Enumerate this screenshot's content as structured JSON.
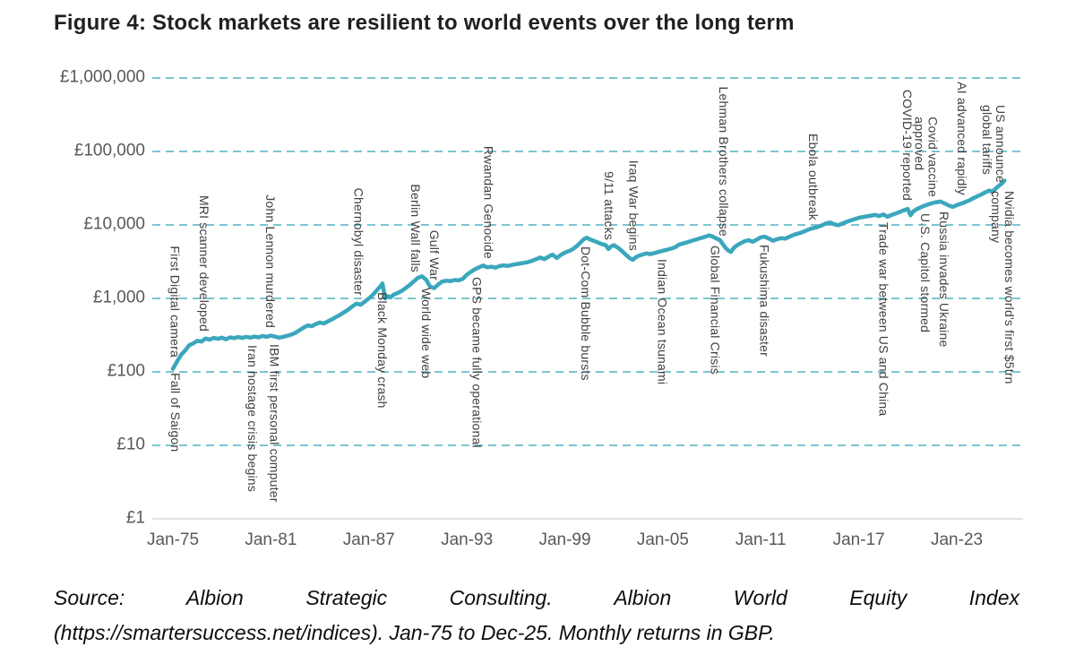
{
  "title": "Figure 4: Stock markets are resilient to world events over the long term",
  "source": {
    "line1": "Source: Albion Strategic Consulting. Albion World Equity Index",
    "line2": "(https://smartersuccess.net/indices). Jan-75 to Dec-25. Monthly returns in GBP."
  },
  "colors": {
    "line": "#3aa7bc",
    "grid": "#4fb3c4",
    "baseline": "#d9d9d9",
    "axis_text": "#595959",
    "event_text": "#3f3f3f",
    "title_text": "#231f20"
  },
  "chart_data": {
    "type": "line",
    "title": "Figure 4: Stock markets are resilient to world events over the long term",
    "y_scale": "log",
    "x_range": [
      1975,
      2027
    ],
    "y_range": [
      1,
      1000000
    ],
    "x_ticks": [
      {
        "year": 1975,
        "label": "Jan-75"
      },
      {
        "year": 1981,
        "label": "Jan-81"
      },
      {
        "year": 1987,
        "label": "Jan-87"
      },
      {
        "year": 1993,
        "label": "Jan-93"
      },
      {
        "year": 1999,
        "label": "Jan-99"
      },
      {
        "year": 2005,
        "label": "Jan-05"
      },
      {
        "year": 2011,
        "label": "Jan-11"
      },
      {
        "year": 2017,
        "label": "Jan-17"
      },
      {
        "year": 2023,
        "label": "Jan-23"
      }
    ],
    "y_ticks": [
      {
        "value": 1,
        "label": "£1"
      },
      {
        "value": 10,
        "label": "£10"
      },
      {
        "value": 100,
        "label": "£100"
      },
      {
        "value": 1000,
        "label": "£1,000"
      },
      {
        "value": 10000,
        "label": "£10,000"
      },
      {
        "value": 100000,
        "label": "£100,000"
      },
      {
        "value": 1000000,
        "label": "£1,000,000"
      }
    ],
    "series": [
      {
        "name": "Albion World Equity Index (GBP)",
        "points": [
          [
            1975.0,
            110
          ],
          [
            1975.25,
            138
          ],
          [
            1975.5,
            170
          ],
          [
            1975.75,
            195
          ],
          [
            1976.0,
            230
          ],
          [
            1976.25,
            245
          ],
          [
            1976.5,
            265
          ],
          [
            1976.75,
            258
          ],
          [
            1977.0,
            285
          ],
          [
            1977.25,
            275
          ],
          [
            1977.5,
            290
          ],
          [
            1977.75,
            282
          ],
          [
            1978.0,
            292
          ],
          [
            1978.25,
            278
          ],
          [
            1978.5,
            295
          ],
          [
            1978.75,
            288
          ],
          [
            1979.0,
            298
          ],
          [
            1979.25,
            290
          ],
          [
            1979.5,
            300
          ],
          [
            1979.75,
            292
          ],
          [
            1980.0,
            302
          ],
          [
            1980.25,
            295
          ],
          [
            1980.5,
            308
          ],
          [
            1980.75,
            300
          ],
          [
            1981.0,
            312
          ],
          [
            1981.25,
            302
          ],
          [
            1981.5,
            292
          ],
          [
            1981.75,
            300
          ],
          [
            1982.0,
            310
          ],
          [
            1982.25,
            322
          ],
          [
            1982.5,
            340
          ],
          [
            1982.75,
            368
          ],
          [
            1983.0,
            400
          ],
          [
            1983.25,
            428
          ],
          [
            1983.5,
            418
          ],
          [
            1983.75,
            448
          ],
          [
            1984.0,
            470
          ],
          [
            1984.25,
            455
          ],
          [
            1984.5,
            488
          ],
          [
            1984.75,
            520
          ],
          [
            1985.0,
            560
          ],
          [
            1985.25,
            600
          ],
          [
            1985.5,
            650
          ],
          [
            1985.75,
            705
          ],
          [
            1986.0,
            780
          ],
          [
            1986.25,
            850
          ],
          [
            1986.5,
            820
          ],
          [
            1986.75,
            905
          ],
          [
            1987.0,
            1000
          ],
          [
            1987.25,
            1120
          ],
          [
            1987.5,
            1300
          ],
          [
            1987.75,
            1500
          ],
          [
            1987.83,
            1600
          ],
          [
            1988.0,
            1000
          ],
          [
            1988.17,
            1070
          ],
          [
            1988.33,
            1030
          ],
          [
            1988.5,
            1120
          ],
          [
            1988.75,
            1180
          ],
          [
            1989.0,
            1260
          ],
          [
            1989.25,
            1380
          ],
          [
            1989.5,
            1520
          ],
          [
            1989.75,
            1700
          ],
          [
            1990.0,
            1900
          ],
          [
            1990.25,
            2000
          ],
          [
            1990.5,
            1800
          ],
          [
            1990.75,
            1450
          ],
          [
            1991.0,
            1380
          ],
          [
            1991.25,
            1550
          ],
          [
            1991.5,
            1700
          ],
          [
            1991.75,
            1740
          ],
          [
            1992.0,
            1720
          ],
          [
            1992.25,
            1780
          ],
          [
            1992.5,
            1760
          ],
          [
            1992.75,
            1850
          ],
          [
            1993.0,
            2100
          ],
          [
            1993.25,
            2300
          ],
          [
            1993.5,
            2500
          ],
          [
            1993.75,
            2650
          ],
          [
            1994.0,
            2800
          ],
          [
            1994.25,
            2650
          ],
          [
            1994.5,
            2700
          ],
          [
            1994.75,
            2620
          ],
          [
            1995.0,
            2750
          ],
          [
            1995.25,
            2820
          ],
          [
            1995.5,
            2760
          ],
          [
            1995.75,
            2850
          ],
          [
            1996.0,
            2920
          ],
          [
            1996.25,
            2980
          ],
          [
            1996.5,
            3050
          ],
          [
            1996.75,
            3120
          ],
          [
            1997.0,
            3250
          ],
          [
            1997.25,
            3420
          ],
          [
            1997.5,
            3600
          ],
          [
            1997.75,
            3420
          ],
          [
            1998.0,
            3700
          ],
          [
            1998.25,
            3950
          ],
          [
            1998.5,
            3550
          ],
          [
            1998.75,
            3900
          ],
          [
            1999.0,
            4200
          ],
          [
            1999.25,
            4400
          ],
          [
            1999.5,
            4700
          ],
          [
            1999.75,
            5200
          ],
          [
            2000.0,
            5900
          ],
          [
            2000.17,
            6400
          ],
          [
            2000.33,
            6700
          ],
          [
            2000.5,
            6400
          ],
          [
            2000.75,
            6100
          ],
          [
            2001.0,
            5800
          ],
          [
            2001.25,
            5500
          ],
          [
            2001.5,
            5300
          ],
          [
            2001.67,
            4700
          ],
          [
            2001.83,
            5100
          ],
          [
            2002.0,
            5300
          ],
          [
            2002.25,
            4900
          ],
          [
            2002.5,
            4400
          ],
          [
            2002.75,
            3900
          ],
          [
            2003.0,
            3500
          ],
          [
            2003.17,
            3350
          ],
          [
            2003.33,
            3600
          ],
          [
            2003.5,
            3800
          ],
          [
            2003.75,
            3950
          ],
          [
            2004.0,
            4100
          ],
          [
            2004.25,
            4000
          ],
          [
            2004.5,
            4150
          ],
          [
            2004.75,
            4300
          ],
          [
            2005.0,
            4450
          ],
          [
            2005.25,
            4600
          ],
          [
            2005.5,
            4750
          ],
          [
            2005.75,
            4950
          ],
          [
            2006.0,
            5400
          ],
          [
            2006.25,
            5600
          ],
          [
            2006.5,
            5800
          ],
          [
            2006.75,
            6050
          ],
          [
            2007.0,
            6300
          ],
          [
            2007.25,
            6550
          ],
          [
            2007.5,
            6800
          ],
          [
            2007.83,
            7200
          ],
          [
            2008.0,
            7000
          ],
          [
            2008.25,
            6600
          ],
          [
            2008.5,
            6200
          ],
          [
            2008.67,
            5500
          ],
          [
            2008.83,
            4900
          ],
          [
            2009.0,
            4500
          ],
          [
            2009.17,
            4300
          ],
          [
            2009.33,
            4800
          ],
          [
            2009.5,
            5200
          ],
          [
            2009.75,
            5600
          ],
          [
            2010.0,
            6000
          ],
          [
            2010.25,
            6200
          ],
          [
            2010.5,
            5900
          ],
          [
            2010.75,
            6300
          ],
          [
            2011.0,
            6800
          ],
          [
            2011.25,
            6900
          ],
          [
            2011.5,
            6500
          ],
          [
            2011.75,
            6100
          ],
          [
            2012.0,
            6400
          ],
          [
            2012.25,
            6600
          ],
          [
            2012.5,
            6500
          ],
          [
            2012.75,
            6900
          ],
          [
            2013.0,
            7300
          ],
          [
            2013.25,
            7600
          ],
          [
            2013.5,
            7900
          ],
          [
            2013.75,
            8300
          ],
          [
            2014.0,
            8800
          ],
          [
            2014.25,
            9100
          ],
          [
            2014.5,
            9400
          ],
          [
            2014.75,
            9900
          ],
          [
            2015.0,
            10500
          ],
          [
            2015.25,
            10800
          ],
          [
            2015.5,
            10200
          ],
          [
            2015.75,
            9900
          ],
          [
            2016.0,
            10500
          ],
          [
            2016.25,
            11000
          ],
          [
            2016.5,
            11500
          ],
          [
            2016.75,
            12000
          ],
          [
            2017.0,
            12500
          ],
          [
            2017.25,
            12800
          ],
          [
            2017.5,
            13100
          ],
          [
            2017.75,
            13400
          ],
          [
            2018.0,
            13700
          ],
          [
            2018.25,
            13200
          ],
          [
            2018.5,
            13900
          ],
          [
            2018.75,
            12900
          ],
          [
            2019.0,
            13600
          ],
          [
            2019.25,
            14300
          ],
          [
            2019.5,
            15000
          ],
          [
            2019.75,
            15800
          ],
          [
            2020.0,
            16500
          ],
          [
            2020.17,
            13500
          ],
          [
            2020.33,
            15200
          ],
          [
            2020.5,
            16200
          ],
          [
            2020.75,
            17200
          ],
          [
            2021.0,
            18200
          ],
          [
            2021.25,
            19000
          ],
          [
            2021.5,
            19800
          ],
          [
            2021.75,
            20400
          ],
          [
            2022.0,
            20800
          ],
          [
            2022.25,
            19600
          ],
          [
            2022.5,
            18400
          ],
          [
            2022.75,
            17600
          ],
          [
            2023.0,
            18600
          ],
          [
            2023.25,
            19400
          ],
          [
            2023.5,
            20400
          ],
          [
            2023.75,
            21500
          ],
          [
            2024.0,
            23000
          ],
          [
            2024.25,
            24500
          ],
          [
            2024.5,
            26000
          ],
          [
            2024.75,
            27800
          ],
          [
            2025.0,
            29500
          ],
          [
            2025.17,
            28000
          ],
          [
            2025.33,
            30500
          ],
          [
            2025.5,
            33000
          ],
          [
            2025.75,
            36500
          ],
          [
            2025.92,
            40000
          ]
        ]
      }
    ],
    "events_above": [
      {
        "label": "First Digital camera",
        "year": 1975.1
      },
      {
        "label": "MRI scanner developed",
        "year": 1976.9
      },
      {
        "label": "John Lennon murdered",
        "year": 1980.95
      },
      {
        "label": "Chernobyl disaster",
        "year": 1986.35
      },
      {
        "label": "Berlin Wall falls",
        "year": 1989.85
      },
      {
        "label": "Gulf War",
        "year": 1991.0
      },
      {
        "label": "Rwandan Genocide",
        "year": 1994.3
      },
      {
        "label": "9/11 attacks",
        "year": 2001.7
      },
      {
        "label": "Iraq War begins",
        "year": 2003.2
      },
      {
        "label": "Lehman Brothers collapse",
        "year": 2008.7
      },
      {
        "label": "Ebola outbreak",
        "year": 2014.2
      },
      {
        "label": "COVID-19 reported",
        "year": 2019.95
      },
      {
        "label": "Covid vaccine\napproved",
        "year": 2021.1
      },
      {
        "label": "AI advanced rapidly",
        "year": 2023.3
      },
      {
        "label": "US announce\nglobal tariffs",
        "year": 2025.25
      }
    ],
    "events_below": [
      {
        "label": "Fall of Saigon",
        "year": 1975.15
      },
      {
        "label": "Iran hostage crisis begins",
        "year": 1979.85
      },
      {
        "label": "IBM first personal computer",
        "year": 1981.2
      },
      {
        "label": "Black Monday crash",
        "year": 1987.8
      },
      {
        "label": "World wide web",
        "year": 1990.5
      },
      {
        "label": "GPS became fully operational",
        "year": 1993.6
      },
      {
        "label": "Dot-Com Bubble bursts",
        "year": 2000.25
      },
      {
        "label": "Indian Ocean tsunami",
        "year": 2004.95
      },
      {
        "label": "Global Financial Crisis",
        "year": 2008.2
      },
      {
        "label": "Fukushima disaster",
        "year": 2011.2
      },
      {
        "label": "Trade war between US and China",
        "year": 2018.5
      },
      {
        "label": "U.S. Capitol stormed",
        "year": 2021.05
      },
      {
        "label": "Russia invades Ukraine",
        "year": 2022.2
      },
      {
        "label": "Nvidia becomes world's first $5trn\ncompany",
        "year": 2025.8
      }
    ]
  }
}
